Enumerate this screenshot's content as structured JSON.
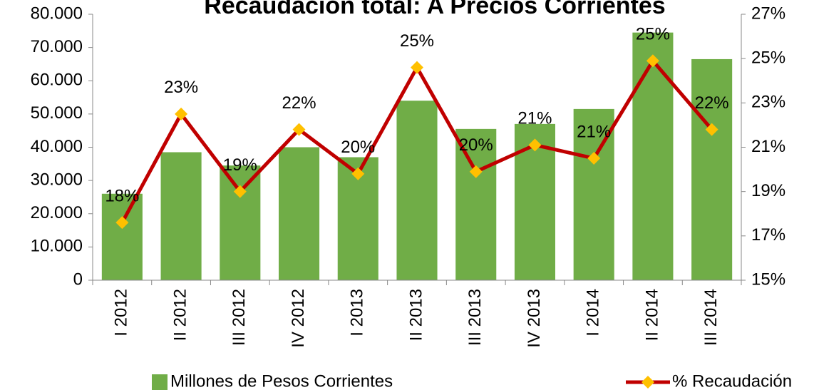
{
  "chart_data": {
    "type": "bar-line",
    "title": "Recaudación total: A Precios Corrientes",
    "categories": [
      "I 2012",
      "II 2012",
      "III 2012",
      "IV 2012",
      "I 2013",
      "II 2013",
      "III 2013",
      "IV 2013",
      "I 2014",
      "II 2014",
      "III 2014"
    ],
    "series": [
      {
        "name": "Millones de Pesos Corrientes",
        "type": "bar",
        "color": "#70ad47",
        "values": [
          26000,
          38500,
          34500,
          40000,
          37000,
          54000,
          45500,
          47000,
          51500,
          74500,
          66500
        ]
      },
      {
        "name": "% Recaudación",
        "type": "line",
        "axis": "y2",
        "color": "#c00000",
        "marker_color": "#ffc000",
        "values": [
          17.6,
          22.5,
          19.0,
          21.8,
          19.8,
          24.6,
          19.9,
          21.1,
          20.5,
          24.9,
          21.8
        ],
        "value_labels": [
          "18%",
          "23%",
          "19%",
          "22%",
          "20%",
          "25%",
          "20%",
          "21%",
          "21%",
          "25%",
          "22%"
        ]
      }
    ],
    "ylim": [
      0,
      80000
    ],
    "yticks": [
      0,
      {
        "value": 10000,
        "label": "10.000"
      },
      {
        "value": 20000,
        "label": "20.000"
      },
      {
        "value": 30000,
        "label": "30.000"
      },
      {
        "value": 40000,
        "label": "40.000"
      },
      {
        "value": 50000,
        "label": "50.000"
      },
      {
        "value": 60000,
        "label": "60.000"
      },
      {
        "value": 70000,
        "label": "70.000"
      },
      {
        "value": 80000,
        "label": "80.000"
      }
    ],
    "y2lim": [
      15,
      27
    ],
    "y2ticks": [
      {
        "value": 15,
        "label": "15%"
      },
      {
        "value": 17,
        "label": "17%"
      },
      {
        "value": 19,
        "label": "19%"
      },
      {
        "value": 21,
        "label": "21%"
      },
      {
        "value": 23,
        "label": "23%"
      },
      {
        "value": 25,
        "label": "25%"
      },
      {
        "value": 27,
        "label": "27%"
      }
    ],
    "grid": false,
    "legend": "bottom"
  }
}
